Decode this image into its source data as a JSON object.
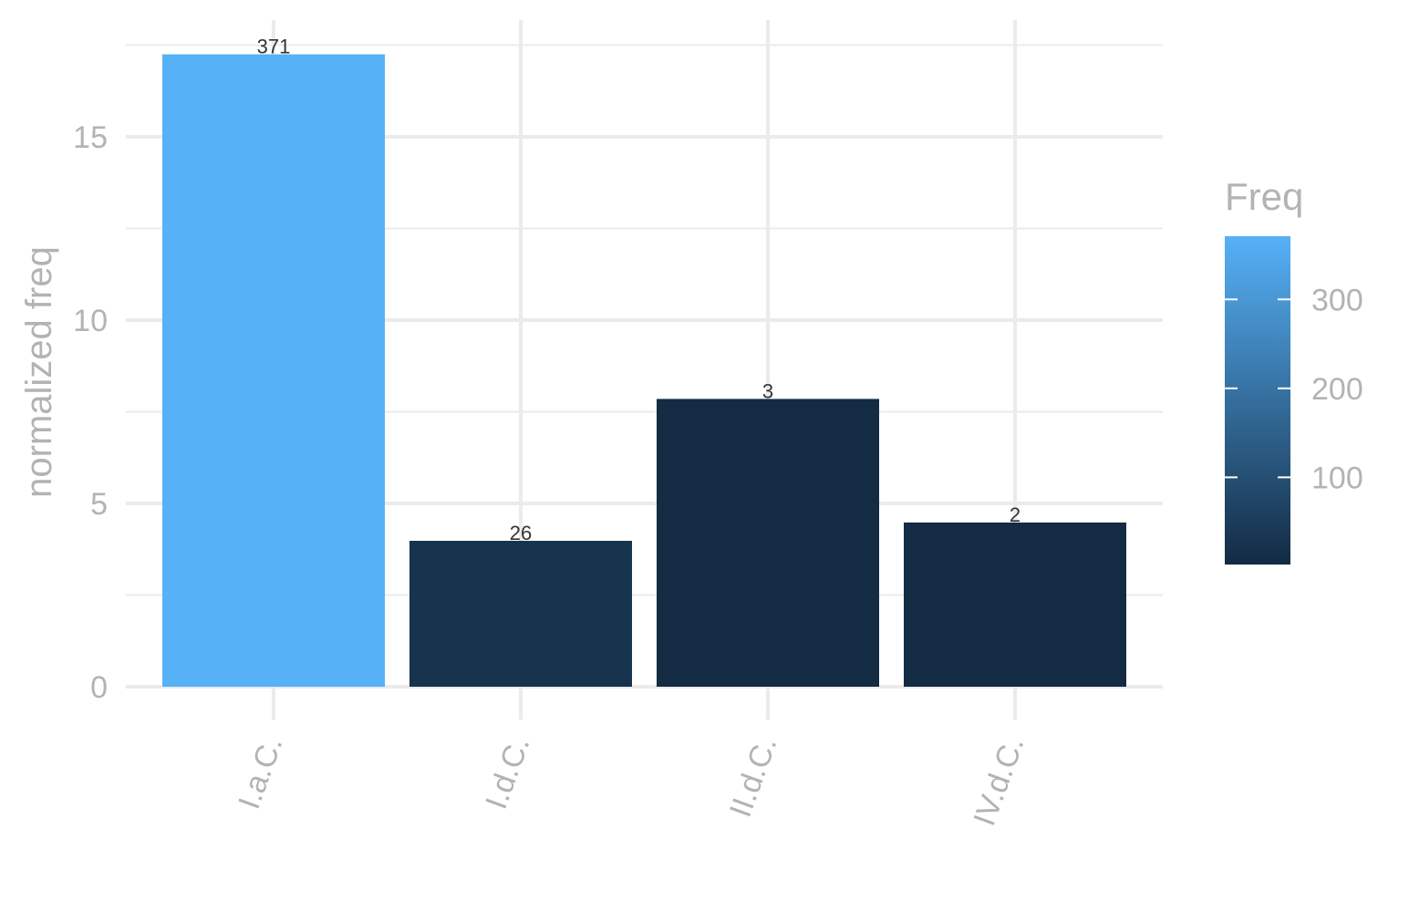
{
  "chart_data": {
    "type": "bar",
    "categories": [
      "I.a.C.",
      "I.d.C.",
      "II.d.C.",
      "IV.d.C."
    ],
    "values": [
      17.25,
      3.98,
      7.85,
      4.48
    ],
    "freq": [
      371,
      26,
      3,
      2
    ],
    "bar_labels": [
      "371",
      "26",
      "3",
      "2"
    ],
    "xlabel": "",
    "ylabel": "normalized freq",
    "ylim": [
      0,
      18
    ],
    "yticks": [
      0,
      5,
      10,
      15
    ],
    "ytick_labels": [
      "0",
      "5",
      "10",
      "15"
    ],
    "grid": true,
    "legend": {
      "title": "Freq",
      "placement": "right",
      "type": "colorbar",
      "range": [
        2,
        371
      ],
      "ticks": [
        100,
        200,
        300
      ],
      "tick_labels": [
        "100",
        "200",
        "300"
      ],
      "color_low": "#132B43",
      "color_high": "#56B1F7"
    }
  }
}
